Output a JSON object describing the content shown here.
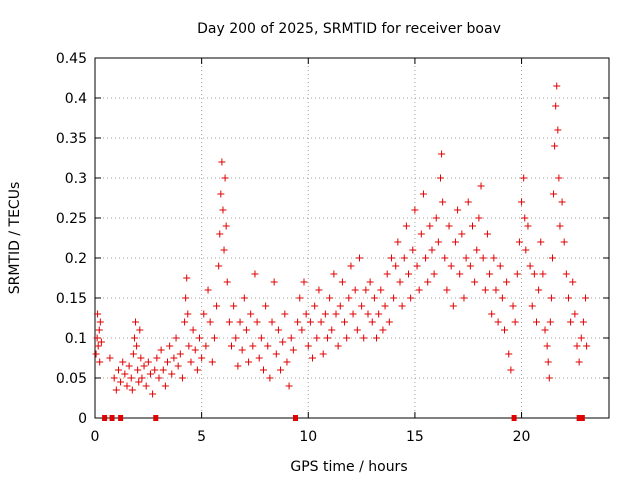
{
  "chart_data": {
    "type": "scatter",
    "title": "Day 200 of 2025, SRMTID for receiver boav",
    "xlabel": "GPS time / hours",
    "ylabel": "SRMTID / TECUs",
    "xlim": [
      0,
      24.1
    ],
    "ylim": [
      0,
      0.45
    ],
    "grid": true,
    "marker": "+",
    "marker_color": "#e00000",
    "x_ticks": [
      0,
      5,
      10,
      15,
      20
    ],
    "y_ticks": [
      0,
      0.05,
      0.1,
      0.15,
      0.2,
      0.25,
      0.3,
      0.35,
      0.4,
      0.45
    ],
    "x_tick_labels": [
      "0",
      "5",
      "10",
      "15",
      "20"
    ],
    "y_tick_labels": [
      "0",
      "0.05",
      "0.1",
      "0.15",
      "0.2",
      "0.25",
      "0.3",
      "0.35",
      "0.4",
      "0.45"
    ],
    "zero_markers_x": [
      0.45,
      0.8,
      1.2,
      2.85,
      9.4,
      19.65,
      22.7,
      22.85
    ],
    "series": [
      {
        "name": "SRMTID",
        "color": "#e00000",
        "points": [
          [
            0.05,
            0.08
          ],
          [
            0.1,
            0.1
          ],
          [
            0.12,
            0.13
          ],
          [
            0.15,
            0.09
          ],
          [
            0.2,
            0.11
          ],
          [
            0.22,
            0.07
          ],
          [
            0.25,
            0.12
          ],
          [
            0.3,
            0.095
          ],
          [
            0.7,
            0.075
          ],
          [
            0.9,
            0.05
          ],
          [
            1.0,
            0.035
          ],
          [
            1.1,
            0.06
          ],
          [
            1.2,
            0.045
          ],
          [
            1.3,
            0.07
          ],
          [
            1.4,
            0.055
          ],
          [
            1.5,
            0.04
          ],
          [
            1.6,
            0.065
          ],
          [
            1.7,
            0.05
          ],
          [
            1.75,
            0.035
          ],
          [
            1.8,
            0.08
          ],
          [
            1.85,
            0.1
          ],
          [
            1.9,
            0.12
          ],
          [
            1.95,
            0.09
          ],
          [
            2.0,
            0.06
          ],
          [
            2.05,
            0.045
          ],
          [
            2.1,
            0.11
          ],
          [
            2.15,
            0.075
          ],
          [
            2.2,
            0.05
          ],
          [
            2.3,
            0.065
          ],
          [
            2.4,
            0.04
          ],
          [
            2.5,
            0.07
          ],
          [
            2.6,
            0.055
          ],
          [
            2.7,
            0.03
          ],
          [
            2.8,
            0.06
          ],
          [
            2.9,
            0.075
          ],
          [
            3.0,
            0.05
          ],
          [
            3.1,
            0.085
          ],
          [
            3.2,
            0.06
          ],
          [
            3.3,
            0.04
          ],
          [
            3.4,
            0.07
          ],
          [
            3.5,
            0.09
          ],
          [
            3.6,
            0.055
          ],
          [
            3.7,
            0.075
          ],
          [
            3.8,
            0.1
          ],
          [
            3.9,
            0.065
          ],
          [
            4.0,
            0.08
          ],
          [
            4.1,
            0.05
          ],
          [
            4.2,
            0.12
          ],
          [
            4.25,
            0.15
          ],
          [
            4.3,
            0.175
          ],
          [
            4.35,
            0.13
          ],
          [
            4.4,
            0.09
          ],
          [
            4.5,
            0.07
          ],
          [
            4.6,
            0.11
          ],
          [
            4.7,
            0.085
          ],
          [
            4.8,
            0.06
          ],
          [
            4.9,
            0.1
          ],
          [
            5.0,
            0.075
          ],
          [
            5.1,
            0.13
          ],
          [
            5.2,
            0.09
          ],
          [
            5.3,
            0.16
          ],
          [
            5.4,
            0.12
          ],
          [
            5.5,
            0.07
          ],
          [
            5.6,
            0.1
          ],
          [
            5.7,
            0.14
          ],
          [
            5.8,
            0.19
          ],
          [
            5.85,
            0.23
          ],
          [
            5.9,
            0.28
          ],
          [
            5.95,
            0.32
          ],
          [
            6.0,
            0.26
          ],
          [
            6.05,
            0.21
          ],
          [
            6.1,
            0.3
          ],
          [
            6.15,
            0.24
          ],
          [
            6.2,
            0.17
          ],
          [
            6.3,
            0.12
          ],
          [
            6.4,
            0.09
          ],
          [
            6.5,
            0.14
          ],
          [
            6.6,
            0.1
          ],
          [
            6.7,
            0.065
          ],
          [
            6.8,
            0.12
          ],
          [
            6.9,
            0.085
          ],
          [
            7.0,
            0.15
          ],
          [
            7.1,
            0.11
          ],
          [
            7.2,
            0.07
          ],
          [
            7.3,
            0.13
          ],
          [
            7.4,
            0.09
          ],
          [
            7.5,
            0.18
          ],
          [
            7.6,
            0.12
          ],
          [
            7.7,
            0.075
          ],
          [
            7.8,
            0.1
          ],
          [
            7.9,
            0.06
          ],
          [
            8.0,
            0.14
          ],
          [
            8.1,
            0.09
          ],
          [
            8.2,
            0.05
          ],
          [
            8.3,
            0.12
          ],
          [
            8.4,
            0.17
          ],
          [
            8.5,
            0.08
          ],
          [
            8.6,
            0.11
          ],
          [
            8.7,
            0.06
          ],
          [
            8.8,
            0.095
          ],
          [
            8.9,
            0.13
          ],
          [
            9.0,
            0.07
          ],
          [
            9.1,
            0.04
          ],
          [
            9.2,
            0.1
          ],
          [
            9.3,
            0.085
          ],
          [
            9.5,
            0.12
          ],
          [
            9.6,
            0.15
          ],
          [
            9.7,
            0.11
          ],
          [
            9.8,
            0.17
          ],
          [
            9.9,
            0.13
          ],
          [
            10.0,
            0.09
          ],
          [
            10.1,
            0.12
          ],
          [
            10.2,
            0.075
          ],
          [
            10.3,
            0.14
          ],
          [
            10.4,
            0.1
          ],
          [
            10.5,
            0.16
          ],
          [
            10.6,
            0.12
          ],
          [
            10.7,
            0.08
          ],
          [
            10.8,
            0.13
          ],
          [
            10.9,
            0.1
          ],
          [
            11.0,
            0.15
          ],
          [
            11.1,
            0.11
          ],
          [
            11.2,
            0.18
          ],
          [
            11.3,
            0.13
          ],
          [
            11.4,
            0.09
          ],
          [
            11.5,
            0.14
          ],
          [
            11.6,
            0.17
          ],
          [
            11.7,
            0.12
          ],
          [
            11.8,
            0.1
          ],
          [
            11.9,
            0.15
          ],
          [
            12.0,
            0.19
          ],
          [
            12.1,
            0.13
          ],
          [
            12.2,
            0.16
          ],
          [
            12.3,
            0.11
          ],
          [
            12.4,
            0.2
          ],
          [
            12.5,
            0.14
          ],
          [
            12.6,
            0.1
          ],
          [
            12.7,
            0.16
          ],
          [
            12.8,
            0.13
          ],
          [
            12.9,
            0.17
          ],
          [
            13.0,
            0.12
          ],
          [
            13.1,
            0.15
          ],
          [
            13.2,
            0.1
          ],
          [
            13.3,
            0.13
          ],
          [
            13.4,
            0.16
          ],
          [
            13.5,
            0.11
          ],
          [
            13.6,
            0.14
          ],
          [
            13.7,
            0.18
          ],
          [
            13.8,
            0.12
          ],
          [
            13.9,
            0.2
          ],
          [
            14.0,
            0.15
          ],
          [
            14.1,
            0.19
          ],
          [
            14.2,
            0.22
          ],
          [
            14.3,
            0.17
          ],
          [
            14.4,
            0.14
          ],
          [
            14.5,
            0.2
          ],
          [
            14.6,
            0.24
          ],
          [
            14.7,
            0.18
          ],
          [
            14.8,
            0.15
          ],
          [
            14.9,
            0.21
          ],
          [
            15.0,
            0.26
          ],
          [
            15.1,
            0.19
          ],
          [
            15.2,
            0.16
          ],
          [
            15.3,
            0.23
          ],
          [
            15.4,
            0.28
          ],
          [
            15.5,
            0.2
          ],
          [
            15.6,
            0.17
          ],
          [
            15.7,
            0.24
          ],
          [
            15.8,
            0.21
          ],
          [
            15.9,
            0.18
          ],
          [
            16.0,
            0.25
          ],
          [
            16.1,
            0.22
          ],
          [
            16.2,
            0.3
          ],
          [
            16.25,
            0.33
          ],
          [
            16.3,
            0.27
          ],
          [
            16.4,
            0.2
          ],
          [
            16.5,
            0.16
          ],
          [
            16.6,
            0.24
          ],
          [
            16.7,
            0.19
          ],
          [
            16.8,
            0.14
          ],
          [
            16.9,
            0.22
          ],
          [
            17.0,
            0.26
          ],
          [
            17.1,
            0.18
          ],
          [
            17.2,
            0.23
          ],
          [
            17.3,
            0.15
          ],
          [
            17.4,
            0.2
          ],
          [
            17.5,
            0.27
          ],
          [
            17.6,
            0.19
          ],
          [
            17.7,
            0.24
          ],
          [
            17.8,
            0.17
          ],
          [
            17.9,
            0.21
          ],
          [
            18.0,
            0.25
          ],
          [
            18.1,
            0.29
          ],
          [
            18.2,
            0.2
          ],
          [
            18.3,
            0.16
          ],
          [
            18.4,
            0.23
          ],
          [
            18.5,
            0.18
          ],
          [
            18.6,
            0.13
          ],
          [
            18.7,
            0.2
          ],
          [
            18.8,
            0.16
          ],
          [
            18.9,
            0.12
          ],
          [
            19.0,
            0.19
          ],
          [
            19.1,
            0.15
          ],
          [
            19.2,
            0.11
          ],
          [
            19.3,
            0.17
          ],
          [
            19.4,
            0.08
          ],
          [
            19.5,
            0.06
          ],
          [
            19.6,
            0.14
          ],
          [
            19.7,
            0.12
          ],
          [
            19.8,
            0.18
          ],
          [
            19.9,
            0.22
          ],
          [
            20.0,
            0.27
          ],
          [
            20.1,
            0.3
          ],
          [
            20.15,
            0.25
          ],
          [
            20.2,
            0.21
          ],
          [
            20.3,
            0.24
          ],
          [
            20.4,
            0.19
          ],
          [
            20.5,
            0.14
          ],
          [
            20.6,
            0.18
          ],
          [
            20.7,
            0.12
          ],
          [
            20.8,
            0.16
          ],
          [
            20.9,
            0.22
          ],
          [
            21.0,
            0.18
          ],
          [
            21.1,
            0.11
          ],
          [
            21.2,
            0.09
          ],
          [
            21.25,
            0.07
          ],
          [
            21.3,
            0.05
          ],
          [
            21.35,
            0.12
          ],
          [
            21.4,
            0.15
          ],
          [
            21.45,
            0.2
          ],
          [
            21.5,
            0.28
          ],
          [
            21.55,
            0.34
          ],
          [
            21.6,
            0.39
          ],
          [
            21.65,
            0.415
          ],
          [
            21.7,
            0.36
          ],
          [
            21.75,
            0.3
          ],
          [
            21.8,
            0.24
          ],
          [
            21.9,
            0.27
          ],
          [
            22.0,
            0.22
          ],
          [
            22.1,
            0.18
          ],
          [
            22.2,
            0.15
          ],
          [
            22.3,
            0.12
          ],
          [
            22.4,
            0.17
          ],
          [
            22.5,
            0.13
          ],
          [
            22.6,
            0.09
          ],
          [
            22.7,
            0.07
          ],
          [
            22.8,
            0.1
          ],
          [
            22.9,
            0.12
          ],
          [
            23.0,
            0.15
          ],
          [
            23.05,
            0.09
          ]
        ]
      }
    ]
  }
}
